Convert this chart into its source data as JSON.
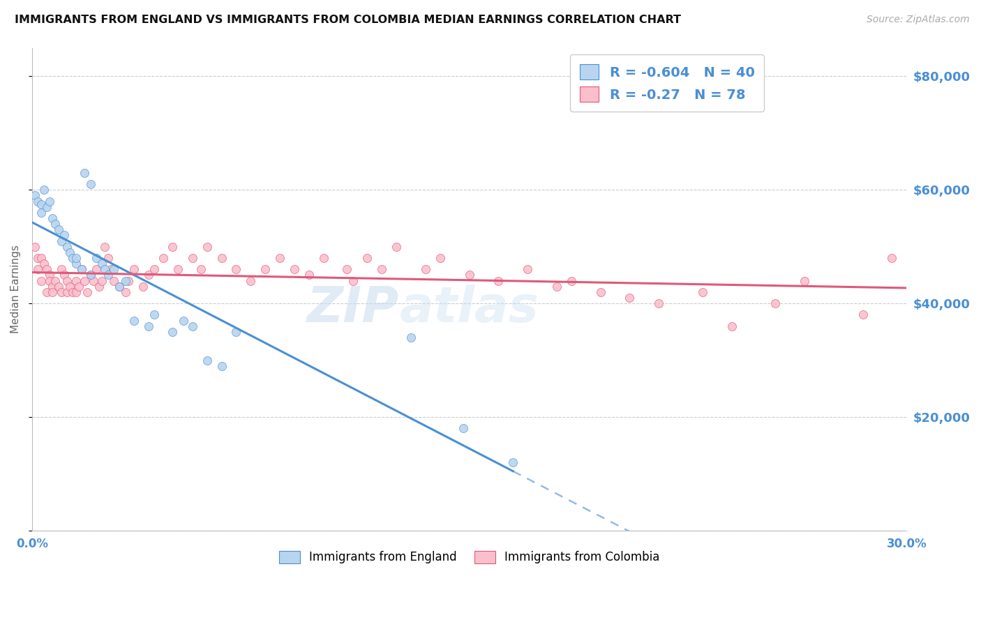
{
  "title": "IMMIGRANTS FROM ENGLAND VS IMMIGRANTS FROM COLOMBIA MEDIAN EARNINGS CORRELATION CHART",
  "source": "Source: ZipAtlas.com",
  "ylabel": "Median Earnings",
  "xlim": [
    0.0,
    0.3
  ],
  "ylim": [
    0,
    85000
  ],
  "yticks": [
    0,
    20000,
    40000,
    60000,
    80000
  ],
  "england_fill_color": "#b8d4ee",
  "colombia_fill_color": "#f9c0cc",
  "england_line_color": "#4a8fd4",
  "colombia_line_color": "#e05878",
  "legend_text_color": "#4a8fd4",
  "england_R": -0.604,
  "england_N": 40,
  "colombia_R": -0.27,
  "colombia_N": 78,
  "watermark_color": "#c8dcf0",
  "england_x": [
    0.001,
    0.002,
    0.003,
    0.003,
    0.004,
    0.005,
    0.006,
    0.007,
    0.008,
    0.009,
    0.01,
    0.011,
    0.012,
    0.013,
    0.014,
    0.015,
    0.015,
    0.017,
    0.018,
    0.02,
    0.02,
    0.022,
    0.024,
    0.025,
    0.026,
    0.028,
    0.03,
    0.032,
    0.035,
    0.04,
    0.042,
    0.048,
    0.052,
    0.055,
    0.06,
    0.065,
    0.07,
    0.13,
    0.148,
    0.165
  ],
  "england_y": [
    59000,
    58000,
    57500,
    56000,
    60000,
    57000,
    58000,
    55000,
    54000,
    53000,
    51000,
    52000,
    50000,
    49000,
    48000,
    47000,
    48000,
    46000,
    63000,
    45000,
    61000,
    48000,
    47000,
    46000,
    45000,
    46000,
    43000,
    44000,
    37000,
    36000,
    38000,
    35000,
    37000,
    36000,
    30000,
    29000,
    35000,
    34000,
    18000,
    12000
  ],
  "colombia_x": [
    0.001,
    0.002,
    0.002,
    0.003,
    0.003,
    0.004,
    0.005,
    0.005,
    0.006,
    0.006,
    0.007,
    0.007,
    0.008,
    0.009,
    0.01,
    0.01,
    0.011,
    0.012,
    0.012,
    0.013,
    0.014,
    0.015,
    0.015,
    0.016,
    0.017,
    0.018,
    0.019,
    0.02,
    0.021,
    0.022,
    0.023,
    0.024,
    0.025,
    0.026,
    0.027,
    0.028,
    0.03,
    0.032,
    0.033,
    0.035,
    0.038,
    0.04,
    0.042,
    0.045,
    0.048,
    0.05,
    0.055,
    0.058,
    0.06,
    0.065,
    0.07,
    0.075,
    0.08,
    0.085,
    0.09,
    0.095,
    0.1,
    0.108,
    0.11,
    0.115,
    0.12,
    0.125,
    0.135,
    0.14,
    0.15,
    0.16,
    0.17,
    0.18,
    0.185,
    0.195,
    0.205,
    0.215,
    0.23,
    0.24,
    0.255,
    0.265,
    0.285,
    0.295
  ],
  "colombia_y": [
    50000,
    48000,
    46000,
    48000,
    44000,
    47000,
    46000,
    42000,
    45000,
    44000,
    43000,
    42000,
    44000,
    43000,
    46000,
    42000,
    45000,
    44000,
    42000,
    43000,
    42000,
    44000,
    42000,
    43000,
    46000,
    44000,
    42000,
    45000,
    44000,
    46000,
    43000,
    44000,
    50000,
    48000,
    46000,
    44000,
    43000,
    42000,
    44000,
    46000,
    43000,
    45000,
    46000,
    48000,
    50000,
    46000,
    48000,
    46000,
    50000,
    48000,
    46000,
    44000,
    46000,
    48000,
    46000,
    45000,
    48000,
    46000,
    44000,
    48000,
    46000,
    50000,
    46000,
    48000,
    45000,
    44000,
    46000,
    43000,
    44000,
    42000,
    41000,
    40000,
    42000,
    36000,
    40000,
    44000,
    38000,
    48000
  ]
}
